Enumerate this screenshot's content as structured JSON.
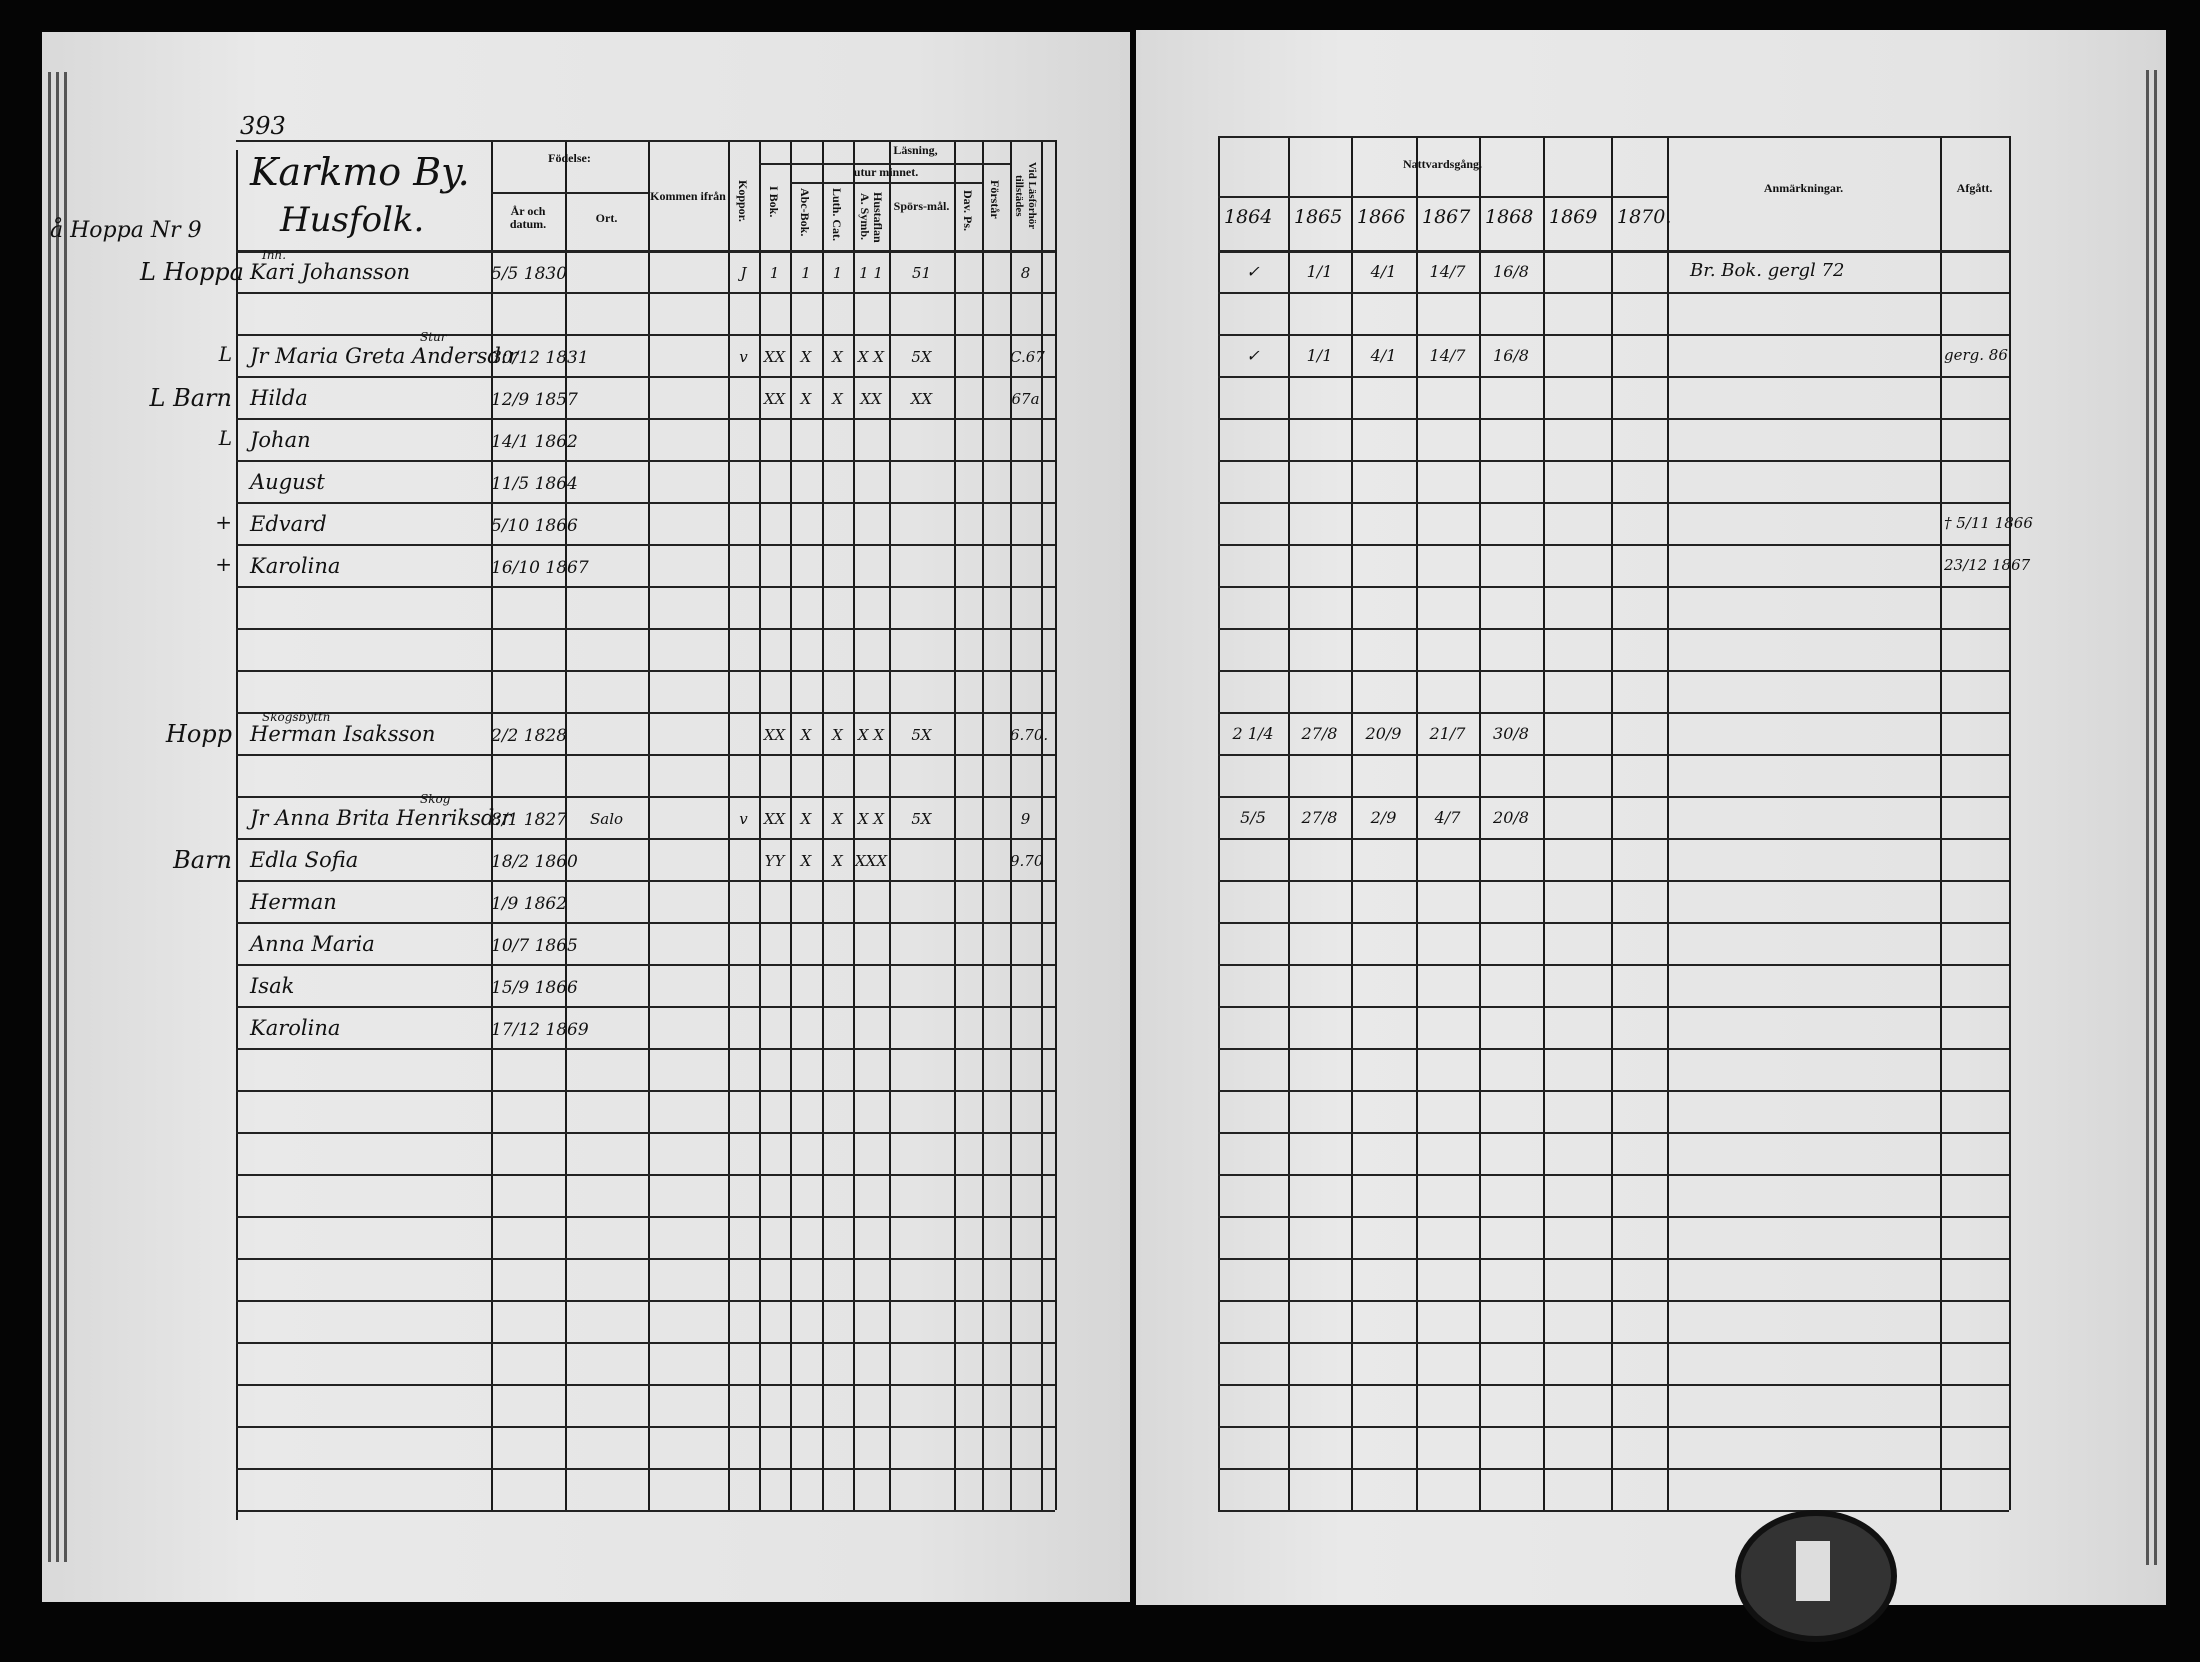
{
  "left_page": {
    "page_number": "393",
    "village": "Karkmo By.",
    "household_label": "Husfolk.",
    "margin_header": "å Hoppa Nr 9",
    "headers": {
      "fodelse": "Födelse:",
      "ar_datum": "År och datum.",
      "ort": "Ort.",
      "kommen_ifran": "Kommen ifrån",
      "koppor": "Koppor.",
      "lasning": "Läsning,",
      "utur_minnet": "utur minnet.",
      "i_bok": "I Bok.",
      "abc_bok": "Abc-Bok.",
      "luth_cat": "Luth. Cat.",
      "hustaflan": "Hustaflan A. Symb.",
      "sporsmal": "Spörs-mål.",
      "dav_ps": "Dav. Ps.",
      "forstar": "Förstår",
      "vid_lasforhor": "Vid Läsförhör tillstädes"
    },
    "rows": [
      {
        "margin": "L Hoppa",
        "prefix": "Inh.",
        "name": "Kari Johansson",
        "born": "5/5 1830",
        "ort": "",
        "koppor": "J",
        "i_bok": "1",
        "abc": "1",
        "luth": "1",
        "hust": "1 1",
        "spors": "51",
        "vid": "8"
      },
      {},
      {
        "margin": "L",
        "super": "Stur",
        "name": "Jr Maria Greta Andersd:r",
        "born": "30/12 1831",
        "koppor": "v",
        "i_bok": "XX",
        "abc": "X",
        "luth": "X",
        "hust": "X X",
        "spors": "5X",
        "vid": "C.67"
      },
      {
        "margin": "L Barn",
        "name": "Hilda",
        "born": "12/9 1857",
        "i_bok": "XX",
        "abc": "X",
        "luth": "X",
        "hust": "XX",
        "spors": "XX",
        "vid": "67a"
      },
      {
        "margin": "L",
        "name": "Johan",
        "born": "14/1 1862"
      },
      {
        "name": "August",
        "born": "11/5 1864"
      },
      {
        "margin": "+",
        "name": "Edvard",
        "born": "5/10 1866"
      },
      {
        "margin": "+",
        "name": "Karolina",
        "born": "16/10 1867"
      },
      {},
      {},
      {},
      {
        "margin": "Hopp",
        "prefix": "Skogsbyttn",
        "name": "Herman Isaksson",
        "born": "2/2 1828",
        "i_bok": "XX",
        "abc": "X",
        "luth": "X",
        "hust": "X X",
        "spors": "5X",
        "vid": "6.70."
      },
      {},
      {
        "super": "Skog",
        "name": "Jr Anna Brita Henriksd:r",
        "born": "8/1 1827",
        "ort": "Salo",
        "koppor": "v",
        "i_bok": "XX",
        "abc": "X",
        "luth": "X",
        "hust": "X X",
        "spors": "5X",
        "vid": "9"
      },
      {
        "margin": "Barn",
        "name": "Edla Sofia",
        "born": "18/2 1860",
        "i_bok": "YY",
        "abc": "X",
        "luth": "X",
        "hust": "XXX",
        "vid": "9.70"
      },
      {
        "name": "Herman",
        "born": "1/9 1862"
      },
      {
        "name": "Anna Maria",
        "born": "10/7 1865"
      },
      {
        "name": "Isak",
        "born": "15/9 1866"
      },
      {
        "name": "Karolina",
        "born": "17/12 1869"
      },
      {},
      {},
      {},
      {},
      {},
      {},
      {},
      {},
      {},
      {},
      {}
    ]
  },
  "right_page": {
    "headers": {
      "nattvardsgang": "Nattvardsgång.",
      "years": [
        "1864",
        "1865",
        "1866",
        "1867",
        "1868",
        "1869",
        "1870."
      ],
      "anmarkningar": "Anmärkningar.",
      "afgatt": "Afgått."
    },
    "rows": [
      {
        "n": [
          "✓",
          "1/1",
          "4/1",
          "14/7",
          "16/8",
          "",
          ""
        ],
        "anm": "Br. Bok. gergl 72"
      },
      {},
      {
        "n": [
          "✓",
          "1/1",
          "4/1",
          "14/7",
          "16/8",
          "",
          ""
        ],
        "afg": "gerg. 86"
      },
      {},
      {},
      {},
      {
        "afg": "† 5/11 1866"
      },
      {
        "afg": "23/12 1867"
      },
      {},
      {},
      {},
      {
        "n": [
          "2 1/4",
          "27/8",
          "20/9",
          "21/7",
          "30/8",
          "",
          ""
        ]
      },
      {},
      {
        "n": [
          "5/5",
          "27/8",
          "2/9",
          "4/7",
          "20/8",
          "",
          ""
        ]
      }
    ]
  }
}
